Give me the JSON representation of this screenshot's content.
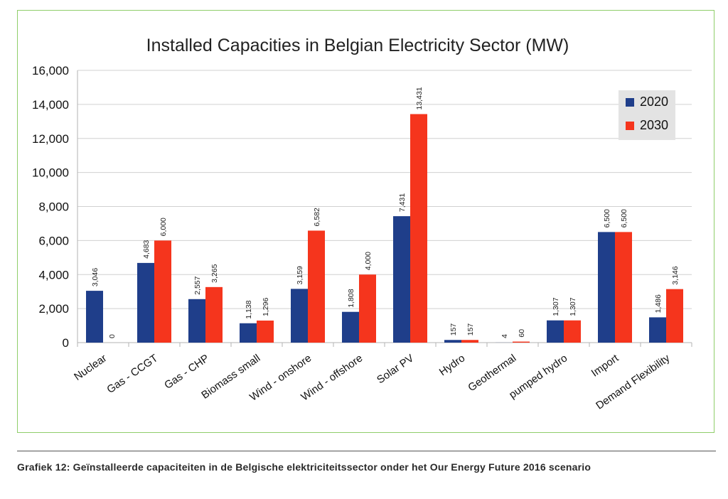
{
  "chart_data": {
    "type": "bar",
    "title": "Installed Capacities in Belgian Electricity Sector (MW)",
    "xlabel": "",
    "ylabel": "",
    "ylim": [
      0,
      16000
    ],
    "yticks": [
      0,
      2000,
      4000,
      6000,
      8000,
      10000,
      12000,
      14000,
      16000
    ],
    "ytick_labels": [
      "0",
      "2,000",
      "4,000",
      "6,000",
      "8,000",
      "10,000",
      "12,000",
      "14,000",
      "16,000"
    ],
    "grid": true,
    "legend_position": "top-right",
    "categories": [
      "Nuclear",
      "Gas - CCGT",
      "Gas - CHP",
      "Biomass small",
      "Wind - onshore",
      "Wind - offshore",
      "Solar PV",
      "Hydro",
      "Geothermal",
      "pumped hydro",
      "Import",
      "Demand Flexibility"
    ],
    "series": [
      {
        "name": "2020",
        "color": "#1f3e8a",
        "values": [
          3046,
          4683,
          2557,
          1138,
          3159,
          1808,
          7431,
          157,
          4,
          1307,
          6500,
          1486
        ],
        "labels": [
          "3,046",
          "4,683",
          "2,557",
          "1,138",
          "3,159",
          "1,808",
          "7,431",
          "157",
          "4",
          "1,307",
          "6,500",
          "1,486"
        ]
      },
      {
        "name": "2030",
        "color": "#f5351d",
        "values": [
          0,
          6000,
          3265,
          1296,
          6582,
          4000,
          13431,
          157,
          60,
          1307,
          6500,
          3146
        ],
        "labels": [
          "0",
          "6,000",
          "3,265",
          "1,296",
          "6,582",
          "4,000",
          "13,431",
          "157",
          "60",
          "1,307",
          "6,500",
          "3,146"
        ]
      }
    ]
  },
  "caption": {
    "text": "Grafiek 12: Geïnstalleerde capaciteiten in de Belgische elektriciteitssector onder het Our Energy Future 2016 scenario"
  },
  "colors": {
    "frame_border": "#8fce6a",
    "grid": "#d0d0d0",
    "legend_bg": "#e3e3e3"
  }
}
